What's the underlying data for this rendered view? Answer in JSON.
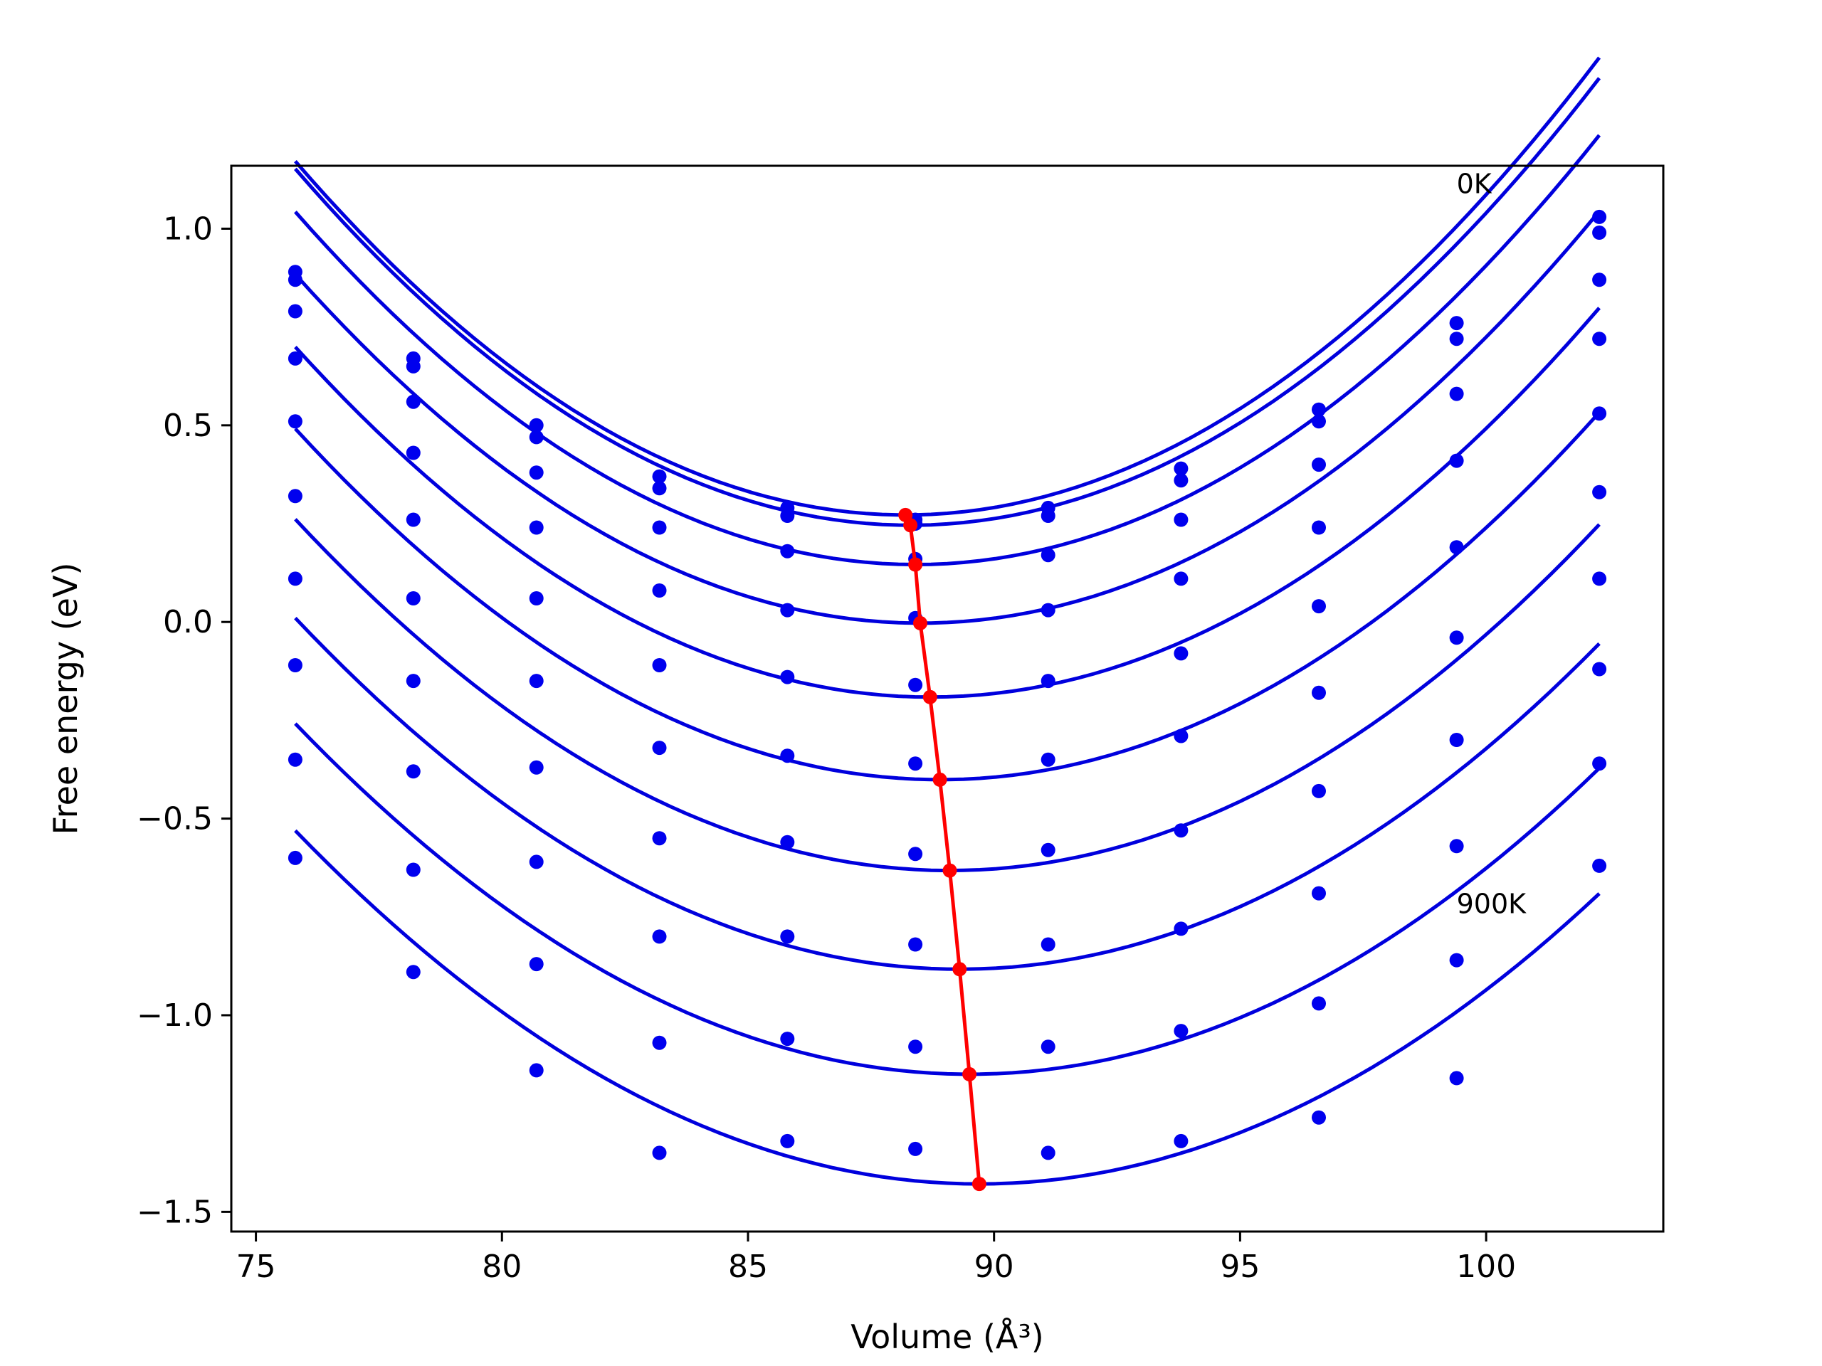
{
  "chart_data": {
    "type": "line",
    "title": "",
    "xlabel": "Volume (Å³)",
    "ylabel": "Free energy (eV)",
    "xlim": [
      74.5,
      103.6
    ],
    "ylim": [
      -1.55,
      1.16
    ],
    "xticks": [
      75,
      80,
      85,
      90,
      95,
      100
    ],
    "xtick_labels": [
      "75",
      "80",
      "85",
      "90",
      "95",
      "100"
    ],
    "yticks": [
      1.0,
      0.5,
      0.0,
      -0.5,
      -1.0,
      -1.5
    ],
    "ytick_labels": [
      "1.0",
      "0.5",
      "0.0",
      "−0.5",
      "−1.0",
      "−1.5"
    ],
    "grid": false,
    "colors": {
      "fit": "#0000dd",
      "points": "#0000ee",
      "min_line": "#ff0000"
    },
    "annotations": [
      {
        "text": "0K",
        "x": 99.4,
        "y": 1.09
      },
      {
        "text": "900K",
        "x": 99.4,
        "y": -0.74
      }
    ],
    "x": [
      75.8,
      78.2,
      80.7,
      83.2,
      85.8,
      88.4,
      91.1,
      93.8,
      96.6,
      99.4,
      102.3
    ],
    "series": [
      {
        "points": [
          0.89,
          0.67,
          0.5,
          0.37,
          0.29,
          0.26,
          0.29,
          0.39,
          0.54,
          0.76,
          1.03
        ],
        "fit": {
          "a": 0.00585,
          "v0": 88.2,
          "e0": 0.272
        }
      },
      {
        "points": [
          0.87,
          0.65,
          0.47,
          0.34,
          0.27,
          0.25,
          0.27,
          0.36,
          0.51,
          0.72,
          0.99
        ],
        "fit": {
          "a": 0.0058,
          "v0": 88.3,
          "e0": 0.246
        }
      },
      {
        "points": [
          0.79,
          0.56,
          0.38,
          0.24,
          0.18,
          0.16,
          0.17,
          0.26,
          0.4,
          0.58,
          0.87
        ],
        "fit": {
          "a": 0.00565,
          "v0": 88.4,
          "e0": 0.146
        }
      },
      {
        "points": [
          0.67,
          0.43,
          0.24,
          0.08,
          0.03,
          0.01,
          0.03,
          0.11,
          0.24,
          0.41,
          0.72
        ],
        "fit": {
          "a": 0.0055,
          "v0": 88.5,
          "e0": -0.003
        }
      },
      {
        "points": [
          0.51,
          0.26,
          0.06,
          -0.11,
          -0.14,
          -0.16,
          -0.15,
          -0.08,
          0.04,
          0.19,
          0.53
        ],
        "fit": {
          "a": 0.00535,
          "v0": 88.7,
          "e0": -0.191
        }
      },
      {
        "points": [
          0.32,
          0.06,
          -0.15,
          -0.32,
          -0.34,
          -0.36,
          -0.35,
          -0.29,
          -0.18,
          -0.04,
          0.33
        ],
        "fit": {
          "a": 0.0052,
          "v0": 88.9,
          "e0": -0.401
        }
      },
      {
        "points": [
          0.11,
          -0.15,
          -0.37,
          -0.55,
          -0.56,
          -0.59,
          -0.58,
          -0.53,
          -0.43,
          -0.3,
          0.11
        ],
        "fit": {
          "a": 0.00505,
          "v0": 89.1,
          "e0": -0.632
        }
      },
      {
        "points": [
          -0.11,
          -0.38,
          -0.61,
          -0.8,
          -0.8,
          -0.82,
          -0.82,
          -0.78,
          -0.69,
          -0.57,
          -0.12
        ],
        "fit": {
          "a": 0.0049,
          "v0": 89.3,
          "e0": -0.883
        }
      },
      {
        "points": [
          -0.35,
          -0.63,
          -0.87,
          -1.07,
          -1.06,
          -1.08,
          -1.08,
          -1.04,
          -0.97,
          -0.86,
          -0.36
        ],
        "fit": {
          "a": 0.00475,
          "v0": 89.5,
          "e0": -1.15
        }
      },
      {
        "points": [
          -0.6,
          -0.89,
          -1.14,
          -1.35,
          -1.32,
          -1.34,
          -1.35,
          -1.32,
          -1.26,
          -1.16,
          -0.62
        ],
        "fit": {
          "a": 0.00465,
          "v0": 89.7,
          "e0": -1.429
        }
      }
    ],
    "minima": {
      "x": [
        88.2,
        88.3,
        88.4,
        88.5,
        88.7,
        88.9,
        89.1,
        89.3,
        89.5,
        89.7
      ],
      "y": [
        0.272,
        0.246,
        0.146,
        -0.003,
        -0.191,
        -0.401,
        -0.632,
        -0.883,
        -1.15,
        -1.429
      ]
    }
  }
}
